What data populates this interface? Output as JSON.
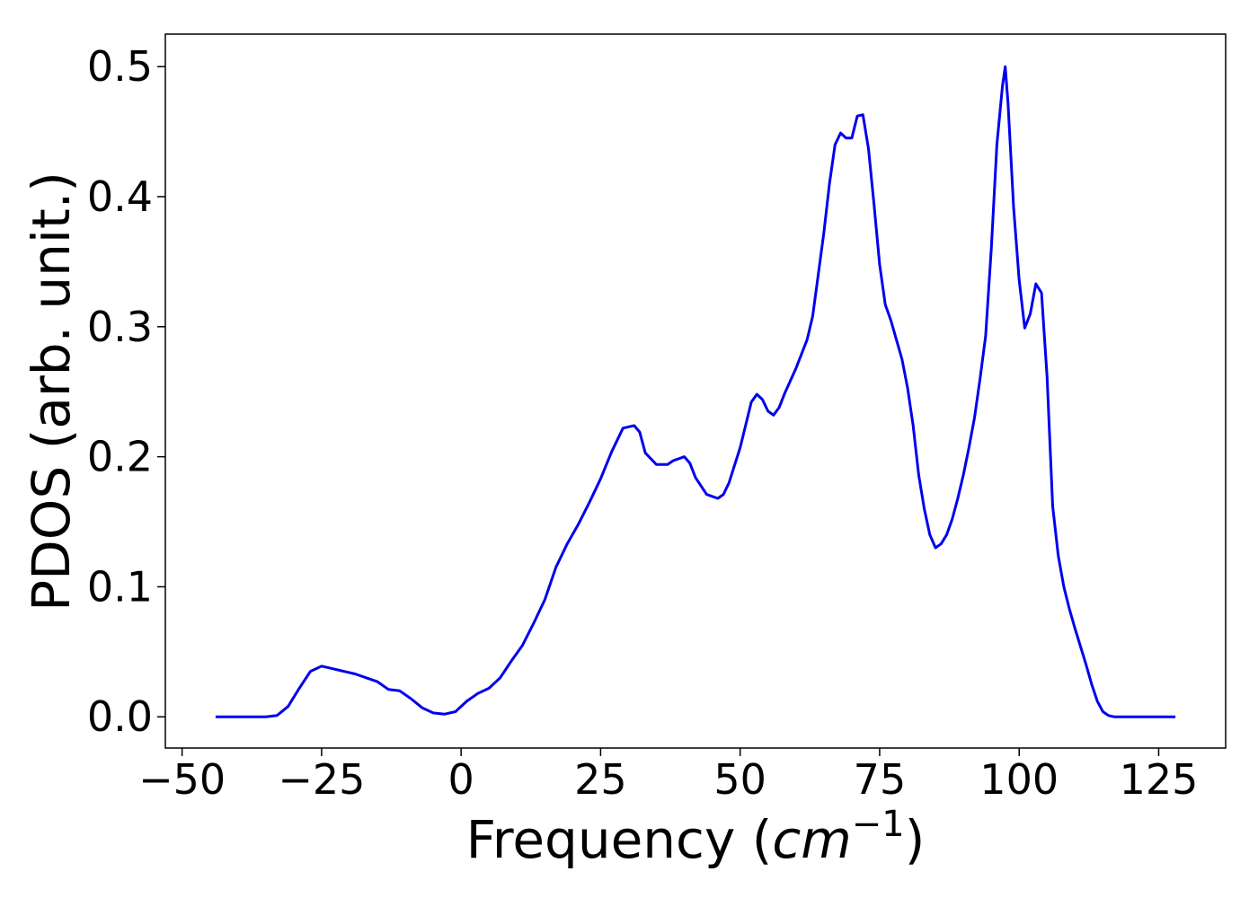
{
  "chart_data": {
    "type": "line",
    "title": "",
    "xlabel_prefix": "Frequency (",
    "xlabel_unit_base": "cm",
    "xlabel_unit_sup": "−1",
    "xlabel_suffix": ")",
    "ylabel": "PDOS (arb. unit.)",
    "xlim": [
      -53,
      137
    ],
    "ylim": [
      -0.024,
      0.525
    ],
    "xticks": [
      -50,
      -25,
      0,
      25,
      50,
      75,
      100,
      125
    ],
    "xtick_labels": [
      "−50",
      "−25",
      "0",
      "25",
      "50",
      "75",
      "100",
      "125"
    ],
    "yticks": [
      0.0,
      0.1,
      0.2,
      0.3,
      0.4,
      0.5
    ],
    "ytick_labels": [
      "0.0",
      "0.1",
      "0.2",
      "0.3",
      "0.4",
      "0.5"
    ],
    "grid": false,
    "legend": "none",
    "line_color": "#0000ee",
    "series": [
      {
        "x": [
          -44,
          -40,
          -35,
          -33,
          -31,
          -29,
          -27,
          -25,
          -23,
          -21,
          -19,
          -17,
          -15,
          -13,
          -11,
          -9,
          -7,
          -5,
          -3,
          -1,
          1,
          3,
          5,
          7,
          9,
          11,
          13,
          15,
          17,
          19,
          21,
          23,
          25,
          27,
          29,
          31,
          32,
          33,
          35,
          37,
          38,
          40,
          41,
          42,
          44,
          46,
          47,
          48,
          50,
          52,
          53,
          54,
          55,
          56,
          57,
          58,
          60,
          62,
          63,
          64,
          65,
          66,
          67,
          68,
          69,
          70,
          71,
          72,
          73,
          74,
          75,
          76,
          77,
          78,
          79,
          80,
          81,
          82,
          83,
          84,
          85,
          86,
          87,
          88,
          89,
          90,
          91,
          92,
          93,
          94,
          95,
          96,
          97,
          97.5,
          98,
          99,
          100,
          101,
          102,
          103,
          104,
          105,
          106,
          107,
          108,
          109,
          110,
          111,
          112,
          113,
          114,
          115,
          116,
          117,
          120,
          128
        ],
        "y": [
          0.0,
          0.0,
          0.0,
          0.001,
          0.008,
          0.022,
          0.035,
          0.039,
          0.037,
          0.035,
          0.033,
          0.03,
          0.027,
          0.021,
          0.02,
          0.014,
          0.007,
          0.003,
          0.002,
          0.004,
          0.012,
          0.018,
          0.022,
          0.03,
          0.043,
          0.055,
          0.072,
          0.09,
          0.115,
          0.133,
          0.148,
          0.165,
          0.183,
          0.204,
          0.222,
          0.224,
          0.219,
          0.203,
          0.194,
          0.194,
          0.197,
          0.2,
          0.195,
          0.184,
          0.171,
          0.168,
          0.171,
          0.18,
          0.207,
          0.242,
          0.248,
          0.244,
          0.235,
          0.232,
          0.238,
          0.249,
          0.268,
          0.29,
          0.308,
          0.34,
          0.372,
          0.41,
          0.44,
          0.449,
          0.445,
          0.445,
          0.462,
          0.463,
          0.437,
          0.394,
          0.348,
          0.317,
          0.305,
          0.29,
          0.275,
          0.253,
          0.224,
          0.186,
          0.16,
          0.14,
          0.13,
          0.133,
          0.14,
          0.152,
          0.168,
          0.186,
          0.207,
          0.23,
          0.26,
          0.293,
          0.36,
          0.44,
          0.485,
          0.5,
          0.472,
          0.392,
          0.336,
          0.299,
          0.31,
          0.333,
          0.326,
          0.261,
          0.162,
          0.124,
          0.1,
          0.083,
          0.068,
          0.054,
          0.04,
          0.025,
          0.012,
          0.004,
          0.001,
          0.0,
          0.0,
          0.0
        ]
      }
    ]
  }
}
